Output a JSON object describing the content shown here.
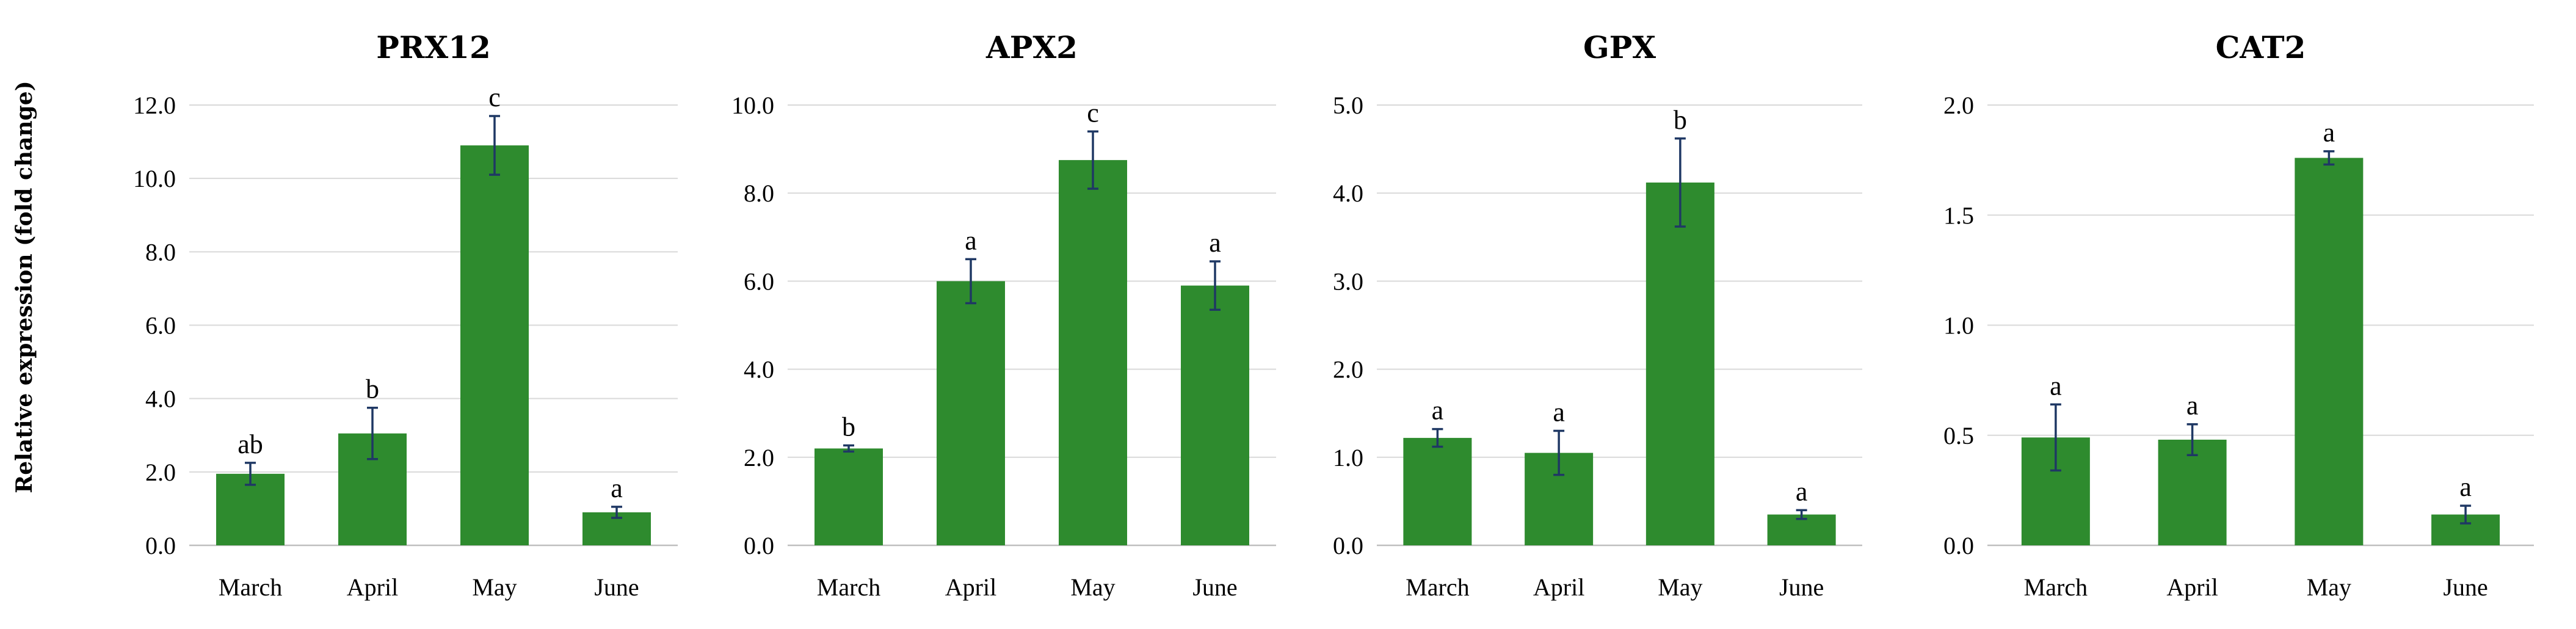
{
  "figure": {
    "ylabel": "Relative expression (fold change)"
  },
  "chart_data": [
    {
      "type": "bar",
      "title": "PRX12",
      "categories": [
        "March",
        "April",
        "May",
        "June"
      ],
      "values": [
        1.95,
        3.05,
        10.9,
        0.9
      ],
      "errors": [
        0.3,
        0.7,
        0.8,
        0.15
      ],
      "letters": [
        "ab",
        "b",
        "c",
        "a"
      ],
      "ylim": [
        0,
        12
      ],
      "yticks": [
        0,
        2,
        4,
        6,
        8,
        10,
        12
      ],
      "tick_labels": [
        "0.0",
        "2.0",
        "4.0",
        "6.0",
        "8.0",
        "10.0",
        "12.0"
      ],
      "bar_color": "#2e8b2e",
      "grid": true
    },
    {
      "type": "bar",
      "title": "APX2",
      "categories": [
        "March",
        "April",
        "May",
        "June"
      ],
      "values": [
        2.2,
        6.0,
        8.75,
        5.9
      ],
      "errors": [
        0.07,
        0.5,
        0.65,
        0.55
      ],
      "letters": [
        "b",
        "a",
        "c",
        "a"
      ],
      "ylim": [
        0,
        10
      ],
      "yticks": [
        0,
        2,
        4,
        6,
        8,
        10
      ],
      "tick_labels": [
        "0.0",
        "2.0",
        "4.0",
        "6.0",
        "8.0",
        "10.0"
      ],
      "bar_color": "#2e8b2e",
      "grid": true
    },
    {
      "type": "bar",
      "title": "GPX",
      "categories": [
        "March",
        "April",
        "May",
        "June"
      ],
      "values": [
        1.22,
        1.05,
        4.12,
        0.35
      ],
      "errors": [
        0.1,
        0.25,
        0.5,
        0.05
      ],
      "letters": [
        "a",
        "a",
        "b",
        "a"
      ],
      "ylim": [
        0,
        5
      ],
      "yticks": [
        0,
        1,
        2,
        3,
        4,
        5
      ],
      "tick_labels": [
        "0.0",
        "1.0",
        "2.0",
        "3.0",
        "4.0",
        "5.0"
      ],
      "bar_color": "#2e8b2e",
      "grid": true
    },
    {
      "type": "bar",
      "title": "CAT2",
      "categories": [
        "March",
        "April",
        "May",
        "June"
      ],
      "values": [
        0.49,
        0.48,
        1.76,
        0.14
      ],
      "errors": [
        0.15,
        0.07,
        0.03,
        0.04
      ],
      "letters": [
        "a",
        "a",
        "a",
        "a"
      ],
      "ylim": [
        0,
        2
      ],
      "yticks": [
        0,
        0.5,
        1,
        1.5,
        2
      ],
      "tick_labels": [
        "0.0",
        "0.5",
        "1.0",
        "1.5",
        "2.0"
      ],
      "bar_color": "#2e8b2e",
      "grid": true
    }
  ]
}
